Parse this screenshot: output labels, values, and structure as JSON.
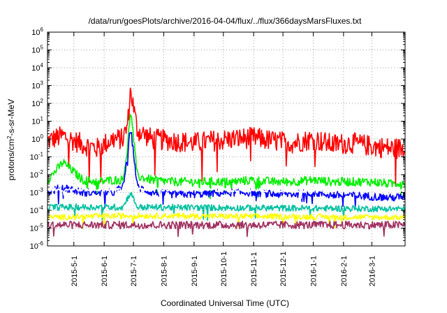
{
  "chart_data": {
    "type": "line",
    "title": "/data/run/goesPlots/archive/2016-04-04/flux/../flux/366daysMarsFluxes.txt",
    "xlabel": "Coordinated Universal Time (UTC)",
    "ylabel": {
      "prefix": "protons/cm",
      "sup": "2",
      "suffix": "-s-sr-MeV"
    },
    "yscale": "log",
    "ylim": [
      "1e-6",
      "1e6"
    ],
    "xlim": [
      "2015-04-04",
      "2016-04-04"
    ],
    "grid": true,
    "legend": "none",
    "x_ticks": [
      "2015-5-1",
      "2015-6-1",
      "2015-7-1",
      "2015-8-1",
      "2015-9-1",
      "2015-10-1",
      "2015-11-1",
      "2015-12-1",
      "2016-1-1",
      "2016-2-1",
      "2016-3-1"
    ],
    "y_ticks": [
      {
        "value": "1e6",
        "mantissa": "10",
        "exp": "6"
      },
      {
        "value": "1e5",
        "mantissa": "10",
        "exp": "5"
      },
      {
        "value": "1e4",
        "mantissa": "10",
        "exp": "4"
      },
      {
        "value": "1e3",
        "mantissa": "10",
        "exp": "3"
      },
      {
        "value": "1e2",
        "mantissa": "10",
        "exp": "2"
      },
      {
        "value": "1e1",
        "mantissa": "10",
        "exp": "1"
      },
      {
        "value": "1e0",
        "mantissa": "10",
        "exp": "0"
      },
      {
        "value": "1e-1",
        "mantissa": "10",
        "exp": "-1"
      },
      {
        "value": "1e-2",
        "mantissa": "10",
        "exp": "-2"
      },
      {
        "value": "1e-3",
        "mantissa": "10",
        "exp": "-3"
      },
      {
        "value": "1e-4",
        "mantissa": "10",
        "exp": "-4"
      },
      {
        "value": "1e-5",
        "mantissa": "10",
        "exp": "-5"
      },
      {
        "value": "1e-6",
        "mantissa": "10",
        "exp": "-6"
      }
    ],
    "series": [
      {
        "color": "#ff0000",
        "x": [
          "2015-04-04",
          "2015-04-20",
          "2015-05-10",
          "2015-05-25",
          "2015-06-10",
          "2015-06-20",
          "2015-06-25",
          "2015-06-28",
          "2015-07-05",
          "2015-07-20",
          "2015-08-10",
          "2015-09-01",
          "2015-09-20",
          "2015-10-10",
          "2015-11-01",
          "2015-11-20",
          "2015-12-10",
          "2016-01-01",
          "2016-01-20",
          "2016-02-10",
          "2016-03-01",
          "2016-03-20",
          "2016-04-04"
        ],
        "y": [
          0.8,
          1.5,
          0.5,
          0.3,
          1.0,
          1.0,
          6.0,
          600,
          3.0,
          1.0,
          0.8,
          0.6,
          0.8,
          1.0,
          1.2,
          0.8,
          0.6,
          1.0,
          0.5,
          0.6,
          0.4,
          0.3,
          0.3
        ]
      },
      {
        "color": "#00ee00",
        "x": [
          "2015-04-04",
          "2015-04-20",
          "2015-05-10",
          "2015-05-25",
          "2015-06-10",
          "2015-06-20",
          "2015-06-25",
          "2015-06-28",
          "2015-07-05",
          "2015-07-20",
          "2015-08-10",
          "2015-09-01",
          "2015-09-20",
          "2015-10-10",
          "2015-11-01",
          "2015-11-20",
          "2015-12-10",
          "2016-01-01",
          "2016-01-20",
          "2016-02-10",
          "2016-03-01",
          "2016-03-20",
          "2016-04-04"
        ],
        "y": [
          0.005,
          0.05,
          0.005,
          0.004,
          0.005,
          0.005,
          0.3,
          50,
          0.008,
          0.005,
          0.004,
          0.004,
          0.004,
          0.004,
          0.005,
          0.004,
          0.004,
          0.005,
          0.004,
          0.004,
          0.004,
          0.003,
          0.004
        ]
      },
      {
        "color": "#0000ff",
        "x": [
          "2015-04-04",
          "2015-04-20",
          "2015-05-10",
          "2015-05-25",
          "2015-06-10",
          "2015-06-20",
          "2015-06-25",
          "2015-06-28",
          "2015-07-05",
          "2015-07-20",
          "2015-08-10",
          "2015-09-01",
          "2015-09-20",
          "2015-10-10",
          "2015-11-01",
          "2015-11-20",
          "2015-12-10",
          "2016-01-01",
          "2016-01-20",
          "2016-02-10",
          "2016-03-01",
          "2016-03-20",
          "2016-04-04"
        ],
        "y": [
          0.001,
          0.002,
          0.001,
          0.001,
          0.001,
          0.002,
          0.1,
          5,
          0.002,
          0.001,
          0.0008,
          0.0008,
          0.0009,
          0.001,
          0.001,
          0.0008,
          0.0008,
          0.001,
          0.0007,
          0.0007,
          0.0006,
          0.0005,
          0.0006
        ]
      },
      {
        "color": "#ffffff",
        "x": [
          "2015-04-04",
          "2015-06-20",
          "2015-06-28",
          "2015-07-05",
          "2016-04-04"
        ],
        "y": [
          0.0015,
          0.0015,
          0.05,
          0.0015,
          0.0012
        ]
      },
      {
        "color": "#00c0a0",
        "x": [
          "2015-04-04",
          "2015-06-20",
          "2015-06-28",
          "2015-07-05",
          "2016-04-04"
        ],
        "y": [
          0.00015,
          0.00015,
          0.001,
          0.00015,
          0.00012
        ]
      },
      {
        "color": "#ffff00",
        "x": [
          "2015-04-04",
          "2015-06-28",
          "2016-04-04"
        ],
        "y": [
          4e-05,
          5e-05,
          4e-05
        ]
      },
      {
        "color": "#a03060",
        "x": [
          "2015-04-04",
          "2015-06-28",
          "2016-04-04"
        ],
        "y": [
          1.5e-05,
          1.5e-05,
          1.5e-05
        ]
      }
    ]
  }
}
